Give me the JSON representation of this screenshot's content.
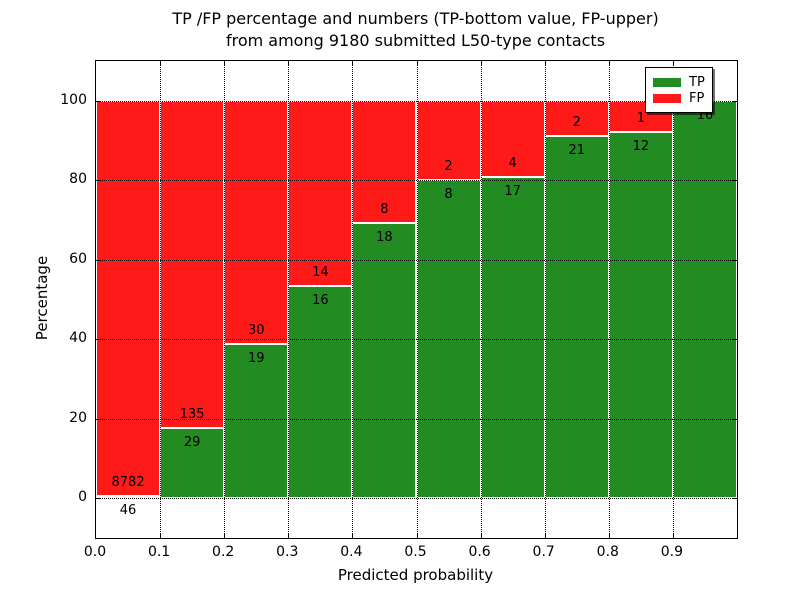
{
  "figure": {
    "title_line1": "TP /FP percentage and numbers (TP-bottom value, FP-upper)",
    "title_line2": "from among 9180 submitted L50-type contacts"
  },
  "chart_data": {
    "type": "bar",
    "stacked": true,
    "orientation": "vertical",
    "title": "TP /FP percentage and numbers (TP-bottom value, FP-upper) from among 9180 submitted L50-type contacts",
    "xlabel": "Predicted probability",
    "ylabel": "Percentage",
    "total_contacts": 9180,
    "bin_width": 0.1,
    "bin_starts": [
      0.0,
      0.1,
      0.2,
      0.3,
      0.4,
      0.5,
      0.6,
      0.7,
      0.8,
      0.9
    ],
    "x_tick_labels": [
      "0.0",
      "0.1",
      "0.2",
      "0.3",
      "0.4",
      "0.5",
      "0.6",
      "0.7",
      "0.8",
      "0.9"
    ],
    "y_tick_values": [
      0,
      20,
      40,
      60,
      80,
      100
    ],
    "xlim": [
      0.0,
      1.0
    ],
    "ylim": [
      -10,
      110
    ],
    "grid": true,
    "series": [
      {
        "name": "TP",
        "color": "#228b22",
        "counts": [
          46,
          29,
          19,
          16,
          18,
          8,
          17,
          21,
          12,
          16
        ]
      },
      {
        "name": "FP",
        "color": "#ff1a1a",
        "counts": [
          8782,
          135,
          30,
          14,
          8,
          2,
          4,
          2,
          1,
          0
        ]
      }
    ],
    "tp_percent_by_bin": [
      0.52,
      17.68,
      38.78,
      53.33,
      69.23,
      80.0,
      80.95,
      91.3,
      92.31,
      100.0
    ],
    "legend": {
      "position": "upper right",
      "entries": [
        {
          "label": "TP",
          "color": "#228b22"
        },
        {
          "label": "FP",
          "color": "#ff1a1a"
        }
      ]
    }
  }
}
